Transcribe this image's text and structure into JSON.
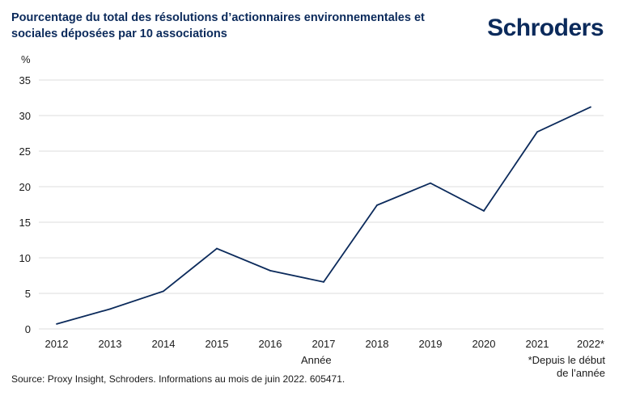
{
  "brand": {
    "logo": "Schroders",
    "color": "#0b2a5b"
  },
  "chart_data": {
    "type": "line",
    "title": "Pourcentage du total des résolutions d’actionnaires environnementales et sociales déposées par 10 associations",
    "ylabel": "%",
    "xlabel": "Année",
    "categories": [
      "2012",
      "2013",
      "2014",
      "2015",
      "2016",
      "2017",
      "2018",
      "2019",
      "2020",
      "2021",
      "2022*"
    ],
    "series": [
      {
        "values": [
          0.7,
          2.8,
          5.3,
          11.3,
          8.2,
          6.6,
          17.4,
          20.5,
          16.6,
          27.7,
          31.2
        ],
        "color": "#0b2a5b"
      }
    ],
    "ylim": [
      0,
      35
    ],
    "yticks": [
      "0",
      "5",
      "10",
      "15",
      "20",
      "25",
      "30",
      "35"
    ],
    "grid": true,
    "legend": "none",
    "annotations": [
      "*Depuis le début",
      "de l’année"
    ],
    "source": "Source: Proxy Insight, Schroders. Informations au mois de juin 2022. 605471."
  }
}
